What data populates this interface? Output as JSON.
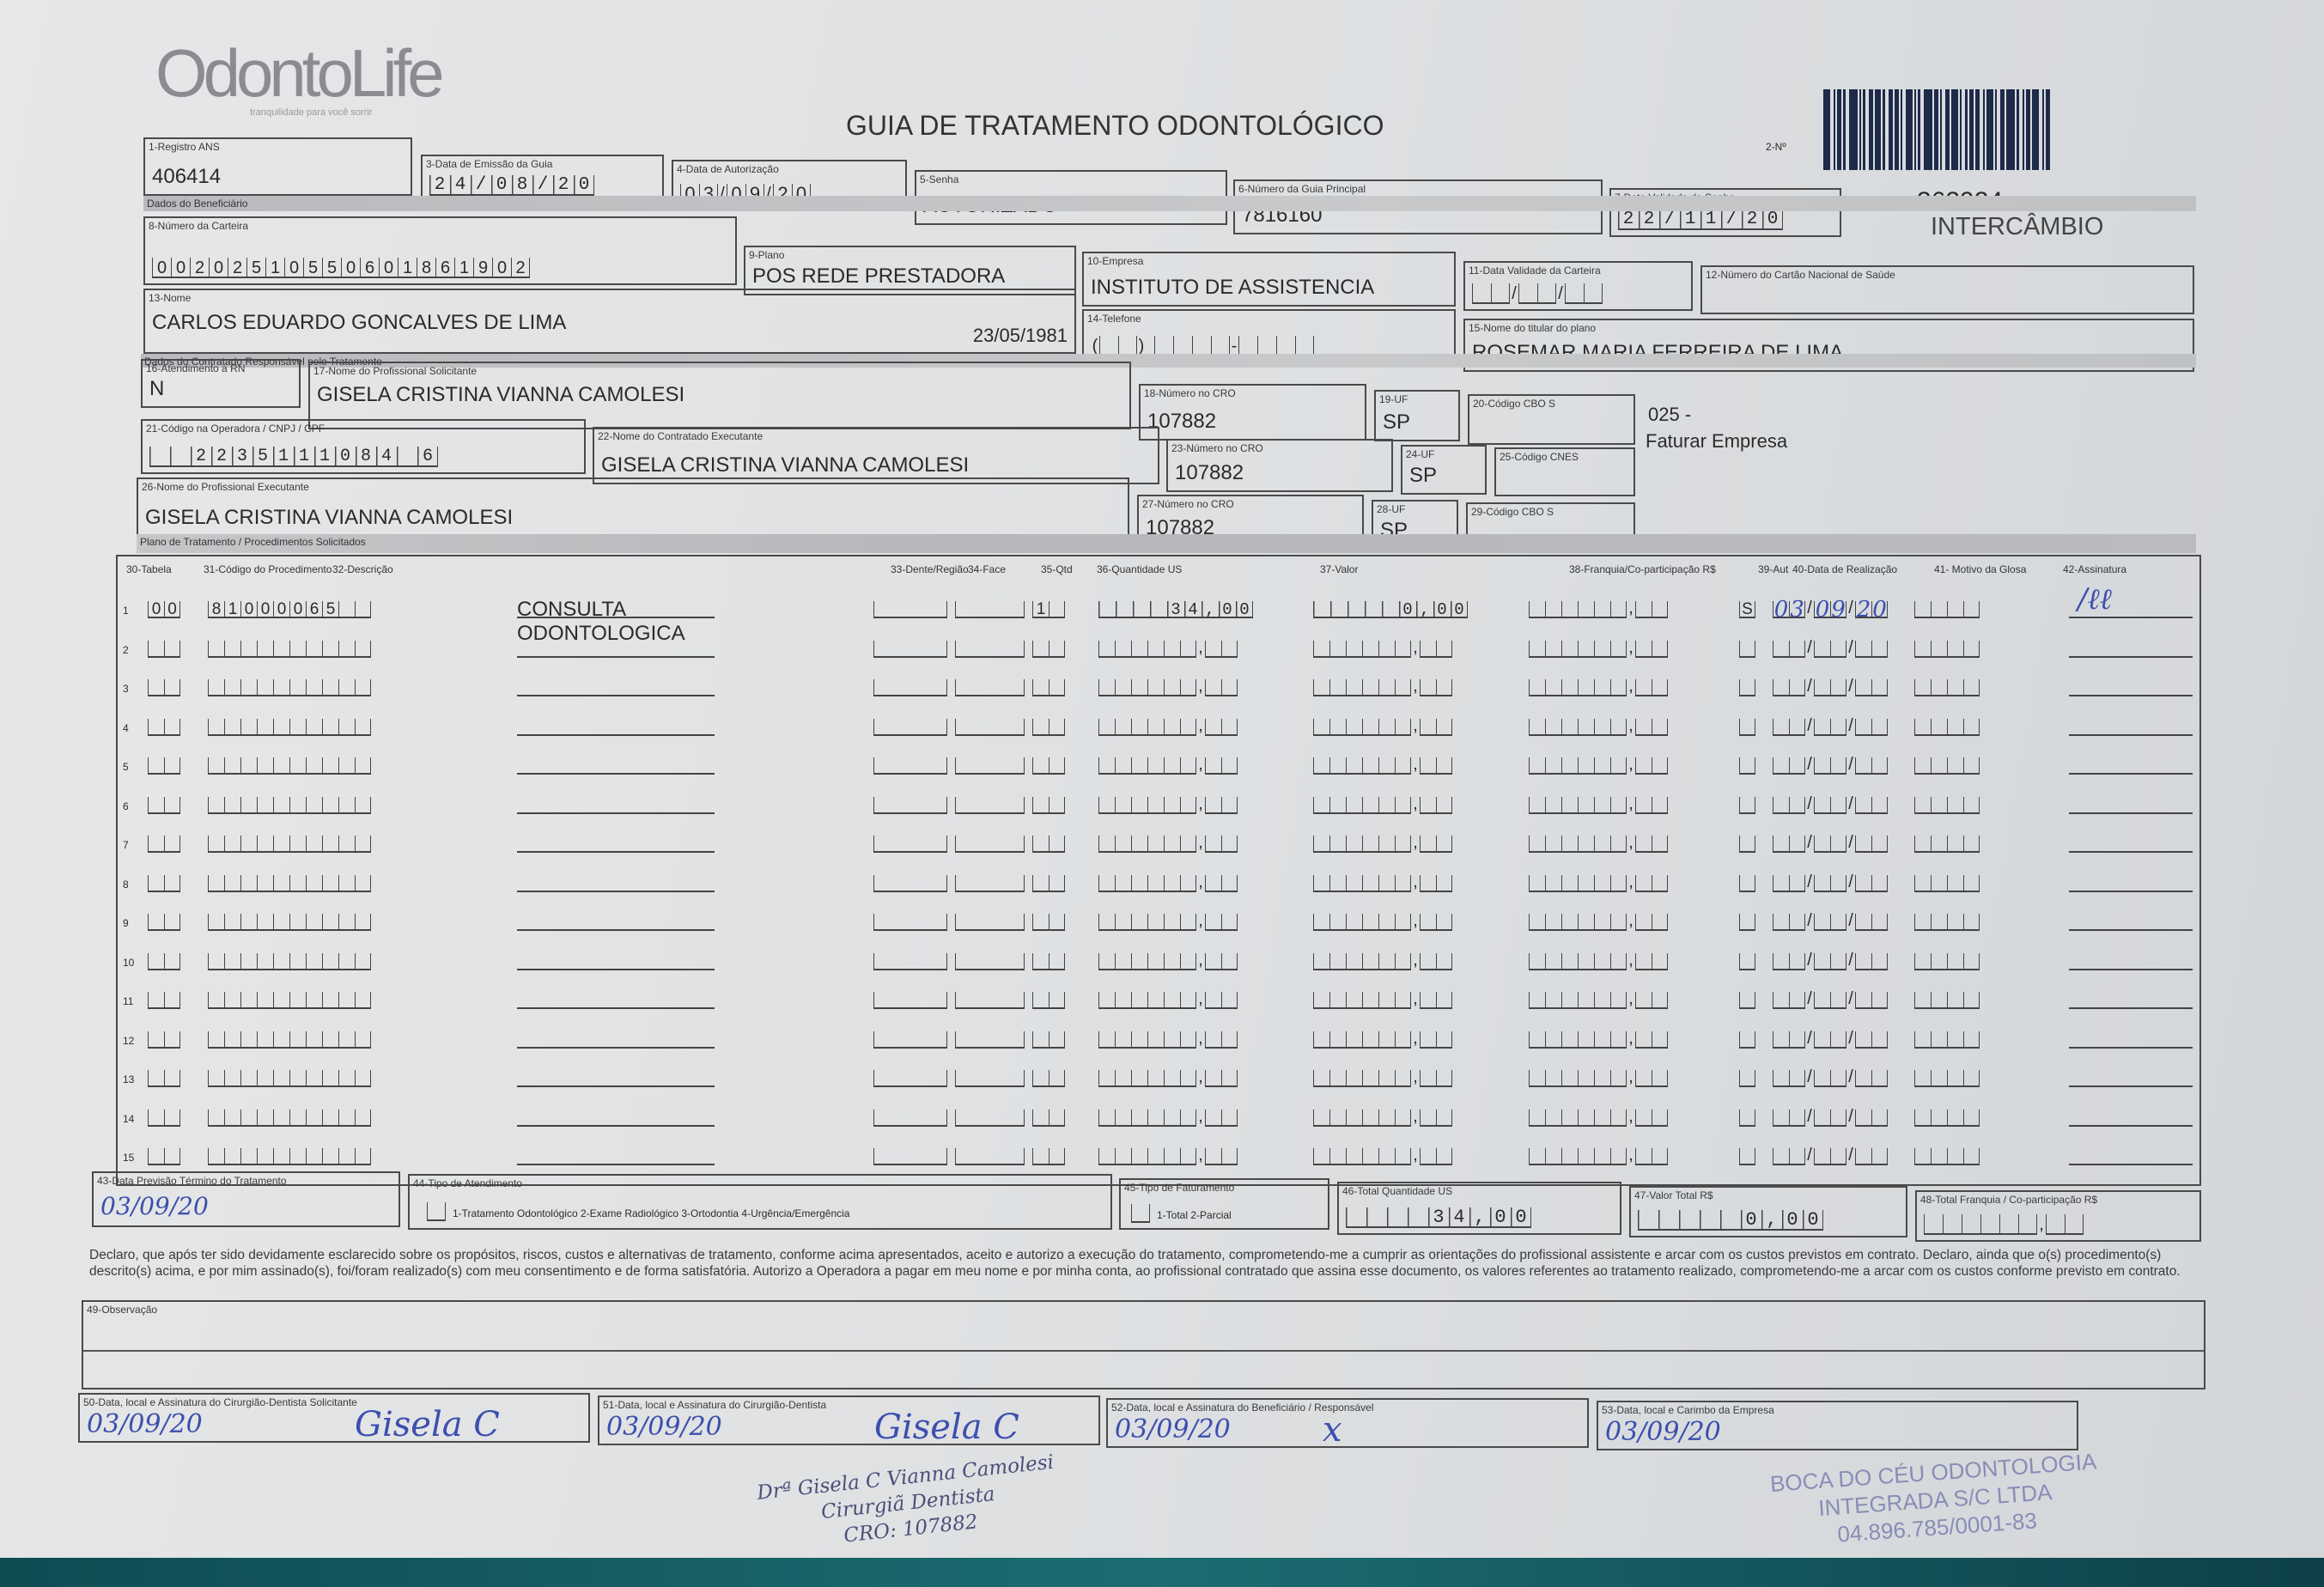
{
  "header": {
    "logo_text": "OdontoLife",
    "logo_tagline": "tranquilidade para você sorrir",
    "title": "GUIA DE TRATAMENTO ODONTOLÓGICO",
    "guide_number_label": "2-Nº",
    "guide_code": "362924",
    "guide_type": "INTERCÂMBIO"
  },
  "fields": {
    "registro_ans": {
      "label": "1-Registro ANS",
      "value": "406414"
    },
    "data_emissao": {
      "label": "3-Data de Emissão da Guia",
      "value": "24/08/20"
    },
    "data_autorizacao": {
      "label": "4-Data de Autorização",
      "value": "03/09/20"
    },
    "senha": {
      "label": "5-Senha",
      "value": "AUTORIZADO"
    },
    "guia_principal": {
      "label": "6-Número da Guia Principal",
      "value": "7816160"
    },
    "validade_senha": {
      "label": "7-Data Validade da Senha",
      "value": "22/11/20"
    },
    "numero_carteira": {
      "label": "8-Número da Carteira",
      "value": "00202510550601861902"
    },
    "plano": {
      "label": "9-Plano",
      "value": "POS REDE PRESTADORA"
    },
    "empresa": {
      "label": "10-Empresa",
      "value": "INSTITUTO DE ASSISTENCIA"
    },
    "validade_carteira": {
      "label": "11-Data Validade da Carteira",
      "value": ""
    },
    "cartao_nacional": {
      "label": "12-Número do Cartão Nacional de Saúde",
      "value": ""
    },
    "nome": {
      "label": "13-Nome",
      "value": "CARLOS EDUARDO GONCALVES DE LIMA",
      "birth": "23/05/1981"
    },
    "telefone": {
      "label": "14-Telefone",
      "value": ""
    },
    "titular": {
      "label": "15-Nome do titular do plano",
      "value": "ROSEMAR MARIA FERREIRA DE LIMA"
    },
    "atendimento_rn": {
      "label": "16-Atendimento a RN",
      "value": "N"
    },
    "prof_solicitante": {
      "label": "17-Nome do Profissional Solicitante",
      "value": "GISELA CRISTINA VIANNA CAMOLESI"
    },
    "cro_solicitante": {
      "label": "18-Número no CRO",
      "value": "107882"
    },
    "uf_solicitante": {
      "label": "19-UF",
      "value": "SP"
    },
    "cbo_solicitante": {
      "label": "20-Código CBO S",
      "value": ""
    },
    "faturamento_code": "025 -",
    "faturamento_text": "Faturar Empresa",
    "codigo_operadora": {
      "label": "21-Código na Operadora / CNPJ / CPF",
      "value": "2235111084 6"
    },
    "contratado_executante": {
      "label": "22-Nome do Contratado Executante",
      "value": "GISELA CRISTINA VIANNA CAMOLESI"
    },
    "cro_contratado": {
      "label": "23-Número no CRO",
      "value": "107882"
    },
    "uf_contratado": {
      "label": "24-UF",
      "value": "SP"
    },
    "cnes": {
      "label": "25-Código CNES",
      "value": ""
    },
    "prof_executante": {
      "label": "26-Nome do Profissional Executante",
      "value": "GISELA CRISTINA VIANNA CAMOLESI"
    },
    "cro_executante": {
      "label": "27-Número no CRO",
      "value": "107882"
    },
    "uf_executante": {
      "label": "28-UF",
      "value": "SP"
    },
    "cbo_executante": {
      "label": "29-Código CBO S",
      "value": ""
    }
  },
  "sections": {
    "beneficiario": "Dados do Beneficiário",
    "contratado": "Dados do Contratado Responsável pelo Tratamento",
    "plano_tratamento": "Plano de Tratamento / Procedimentos Solicitados"
  },
  "procedures": {
    "columns": [
      "30-Tabela",
      "31-Código do Procedimento",
      "32-Descrição",
      "33-Dente/Região",
      "34-Face",
      "35-Qtd",
      "36-Quantidade US",
      "37-Valor",
      "38-Franquia/Co-participação R$",
      "39-Aut",
      "40-Data de Realização",
      "41- Motivo da Glosa",
      "42-Assinatura"
    ],
    "rows": [
      {
        "n": "1",
        "tabela": "00",
        "codigo": "81000065",
        "descricao": "CONSULTA ODONTOLOGICA",
        "qtd": "1",
        "qtd_us": "34,00",
        "valor": "0,00",
        "franquia": "",
        "aut": "S",
        "data": "03/09/20",
        "assinatura": "signed"
      },
      {
        "n": "2"
      },
      {
        "n": "3"
      },
      {
        "n": "4"
      },
      {
        "n": "5"
      },
      {
        "n": "6"
      },
      {
        "n": "7"
      },
      {
        "n": "8"
      },
      {
        "n": "9"
      },
      {
        "n": "10"
      },
      {
        "n": "11"
      },
      {
        "n": "12"
      },
      {
        "n": "13"
      },
      {
        "n": "14"
      },
      {
        "n": "15"
      }
    ]
  },
  "totals": {
    "previsao_termino": {
      "label": "43-Data Previsão Término do Tratamento",
      "value": "03/09/20"
    },
    "tipo_atendimento": {
      "label": "44-Tipo de Atendimento",
      "options": "1-Tratamento Odontológico  2-Exame Radiológico  3-Ortodontia  4-Urgência/Emergência"
    },
    "tipo_faturamento": {
      "label": "45-Tipo de Faturamento",
      "options": "1-Total  2-Parcial"
    },
    "total_us": {
      "label": "46-Total Quantidade US",
      "value": "34,00"
    },
    "valor_total": {
      "label": "47-Valor Total R$",
      "value": "0,00"
    },
    "total_franquia": {
      "label": "48-Total Franquia / Co-participação R$",
      "value": ""
    }
  },
  "declaration": "Declaro, que após ter sido devidamente esclarecido sobre os propósitos, riscos, custos e alternativas de tratamento, conforme acima apresentados, aceito e autorizo a execução do tratamento, comprometendo-me a cumprir as orientações do profissional assistente e arcar com os custos previstos em contrato. Declaro, ainda que o(s) procedimento(s) descrito(s) acima, e por mim assinado(s), foi/foram realizado(s) com meu consentimento e de forma satisfatória. Autorizo a Operadora a pagar em meu nome e por minha conta, ao profissional contratado que assina esse documento, os valores referentes ao tratamento realizado, comprometendo-me a arcar com os custos conforme previsto em contrato.",
  "observacao": {
    "label": "49-Observação",
    "value": ""
  },
  "signatures": [
    {
      "label": "50-Data, local e Assinatura do Cirurgião-Dentista Solicitante",
      "date": "03/09/20",
      "sign": "Gisela C"
    },
    {
      "label": "51-Data, local e Assinatura do Cirurgião-Dentista",
      "date": "03/09/20",
      "sign": "Gisela C"
    },
    {
      "label": "52-Data, local e Assinatura do Beneficiário / Responsável",
      "date": "03/09/20",
      "sign": "x"
    },
    {
      "label": "53-Data, local e Carimbo da Empresa",
      "date": "03/09/20",
      "sign": ""
    }
  ],
  "stamps": {
    "dentist": [
      "Drª Gisela C Vianna Camolesi",
      "Cirurgiã Dentista",
      "CRO: 107882"
    ],
    "company": [
      "BOCA DO CÉU ODONTOLOGIA",
      "INTEGRADA S/C LTDA",
      "04.896.785/0001-83"
    ]
  },
  "colors": {
    "ink": "#3c4fae",
    "paper": "#dfe1e3",
    "print": "#2b2b2b"
  }
}
